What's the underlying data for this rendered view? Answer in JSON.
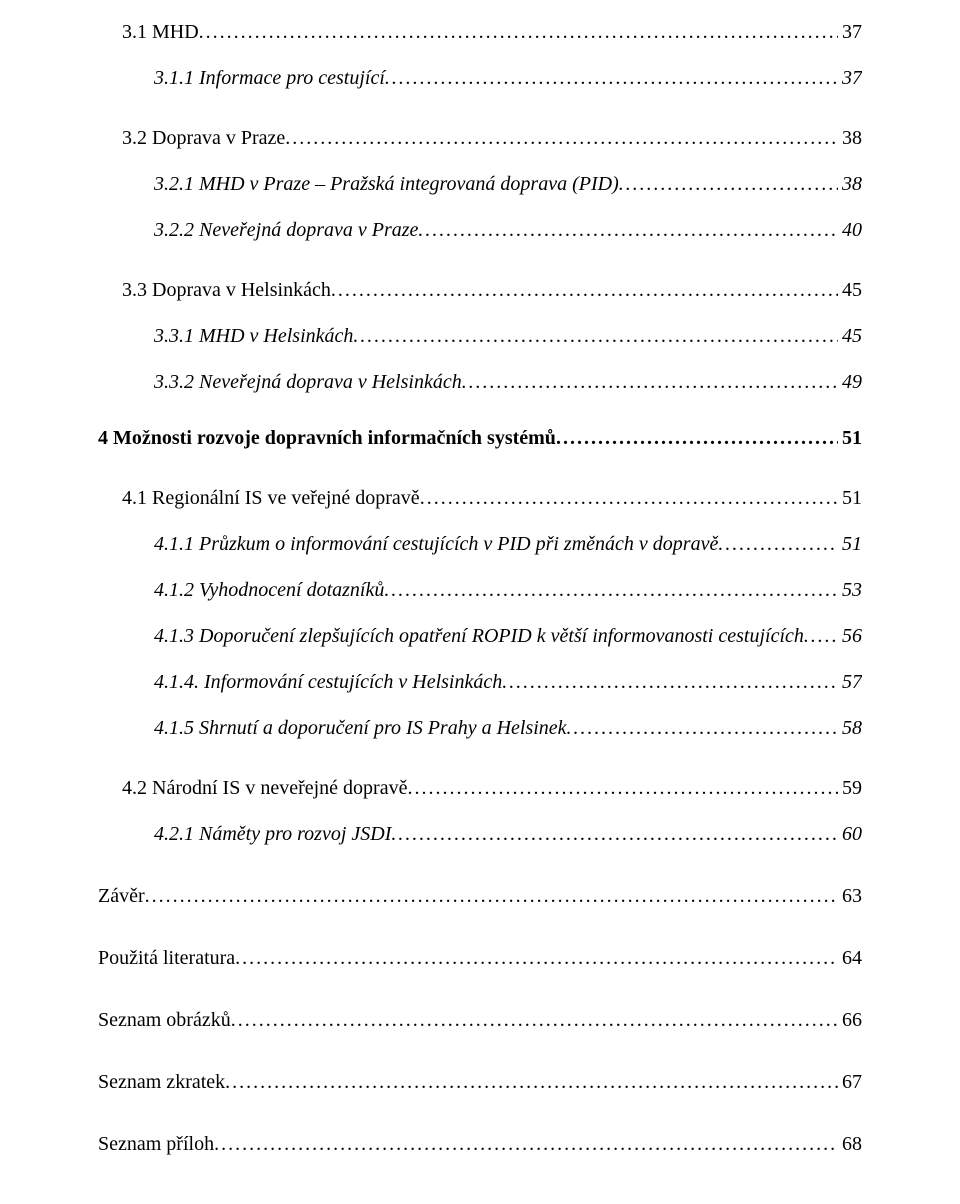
{
  "toc": [
    {
      "level": "lvl-1 first",
      "label": "3.1  MHD",
      "page": "37"
    },
    {
      "level": "lvl-2",
      "label": "3.1.1  Informace pro cestující",
      "page": "37"
    },
    {
      "level": "lvl-1",
      "label": "3.2  Doprava v Praze",
      "page": "38"
    },
    {
      "level": "lvl-2",
      "label": "3.2.1  MHD v Praze – Pražská integrovaná doprava (PID)",
      "page": "38"
    },
    {
      "level": "lvl-2",
      "label": "3.2.2  Neveřejná doprava v Praze",
      "page": "40"
    },
    {
      "level": "lvl-1",
      "label": "3.3  Doprava v Helsinkách",
      "page": "45"
    },
    {
      "level": "lvl-2",
      "label": "3.3.1  MHD v Helsinkách",
      "page": "45"
    },
    {
      "level": "lvl-2",
      "label": "3.3.2  Neveřejná doprava v Helsinkách",
      "page": "49"
    },
    {
      "level": "lvl-h1",
      "label": "4  Možnosti rozvoje dopravních informačních systémů",
      "page": "51"
    },
    {
      "level": "lvl-1",
      "label": "4.1  Regionální IS ve veřejné dopravě",
      "page": "51"
    },
    {
      "level": "lvl-2",
      "label": "4.1.1  Průzkum o  informování cestujících v PID při změnách v dopravě",
      "page": "51"
    },
    {
      "level": "lvl-2",
      "label": "4.1.2  Vyhodnocení dotazníků",
      "page": "53"
    },
    {
      "level": "lvl-2",
      "label": "4.1.3  Doporučení zlepšujících opatření ROPID k větší informovanosti cestujících",
      "page": "56"
    },
    {
      "level": "lvl-2",
      "label": "4.1.4.  Informování cestujících v Helsinkách",
      "page": "57"
    },
    {
      "level": "lvl-2",
      "label": "4.1.5  Shrnutí a doporučení pro IS Prahy a Helsinek",
      "page": "58"
    },
    {
      "level": "lvl-1",
      "label": "4.2  Národní IS v neveřejné dopravě",
      "page": "59"
    },
    {
      "level": "lvl-2",
      "label": "4.2.1  Náměty pro rozvoj JSDI",
      "page": "60"
    },
    {
      "level": "lvl-top",
      "label": "Závěr",
      "page": "63"
    },
    {
      "level": "lvl-top",
      "label": "Použitá literatura",
      "page": "64"
    },
    {
      "level": "lvl-top",
      "label": "Seznam obrázků",
      "page": "66"
    },
    {
      "level": "lvl-top",
      "label": "Seznam zkratek",
      "page": "67"
    },
    {
      "level": "lvl-top",
      "label": "Seznam příloh",
      "page": "68"
    }
  ]
}
